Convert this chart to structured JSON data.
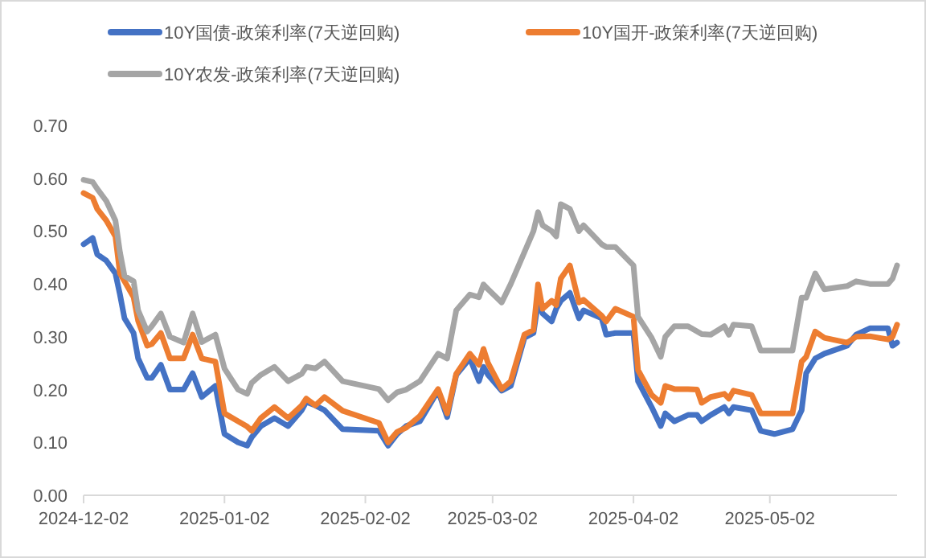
{
  "chart_data": {
    "type": "line",
    "legend": "top",
    "grid": false,
    "marker": "none",
    "line_style": "solid",
    "x": [
      "2024-12-02",
      "2024-12-04",
      "2024-12-05",
      "2024-12-07",
      "2024-12-09",
      "2024-12-10",
      "2024-12-11",
      "2024-12-13",
      "2024-12-14",
      "2024-12-16",
      "2024-12-17",
      "2024-12-19",
      "2024-12-21",
      "2024-12-24",
      "2024-12-26",
      "2024-12-28",
      "2024-12-31",
      "2025-01-02",
      "2025-01-05",
      "2025-01-07",
      "2025-01-08",
      "2025-01-10",
      "2025-01-13",
      "2025-01-16",
      "2025-01-19",
      "2025-01-20",
      "2025-01-22",
      "2025-01-24",
      "2025-01-28",
      "2025-02-05",
      "2025-02-07",
      "2025-02-09",
      "2025-02-11",
      "2025-02-14",
      "2025-02-18",
      "2025-02-20",
      "2025-02-22",
      "2025-02-25",
      "2025-02-27",
      "2025-02-28",
      "2025-03-01",
      "2025-03-04",
      "2025-03-06",
      "2025-03-09",
      "2025-03-11",
      "2025-03-12",
      "2025-03-13",
      "2025-03-15",
      "2025-03-16",
      "2025-03-17",
      "2025-03-19",
      "2025-03-21",
      "2025-03-22",
      "2025-03-26",
      "2025-03-27",
      "2025-03-29",
      "2025-04-02",
      "2025-04-03",
      "2025-04-06",
      "2025-04-08",
      "2025-04-09",
      "2025-04-11",
      "2025-04-14",
      "2025-04-16",
      "2025-04-17",
      "2025-04-19",
      "2025-04-22",
      "2025-04-23",
      "2025-04-24",
      "2025-04-28",
      "2025-04-30",
      "2025-05-03",
      "2025-05-07",
      "2025-05-09",
      "2025-05-10",
      "2025-05-12",
      "2025-05-14",
      "2025-05-19",
      "2025-05-21",
      "2025-05-24",
      "2025-05-28",
      "2025-05-29",
      "2025-05-30"
    ],
    "series": [
      {
        "name": "10Y国债-政策利率(7天逆回购)",
        "color": "#4472c4",
        "values": [
          0.475,
          0.487,
          0.456,
          0.444,
          0.42,
          0.38,
          0.335,
          0.307,
          0.259,
          0.222,
          0.222,
          0.247,
          0.2,
          0.2,
          0.231,
          0.186,
          0.207,
          0.116,
          0.1,
          0.094,
          0.11,
          0.131,
          0.146,
          0.131,
          0.161,
          0.177,
          0.17,
          0.161,
          0.125,
          0.122,
          0.094,
          0.116,
          0.131,
          0.14,
          0.198,
          0.148,
          0.228,
          0.259,
          0.216,
          0.243,
          0.228,
          0.198,
          0.207,
          0.298,
          0.307,
          0.365,
          0.344,
          0.329,
          0.353,
          0.368,
          0.383,
          0.335,
          0.35,
          0.335,
          0.304,
          0.307,
          0.307,
          0.216,
          0.167,
          0.131,
          0.155,
          0.14,
          0.152,
          0.152,
          0.14,
          0.152,
          0.167,
          0.155,
          0.167,
          0.161,
          0.122,
          0.116,
          0.125,
          0.161,
          0.231,
          0.259,
          0.268,
          0.283,
          0.304,
          0.316,
          0.316,
          0.283,
          0.289
        ]
      },
      {
        "name": "10Y国开-政策利率(7天逆回购)",
        "color": "#ed7d31",
        "values": [
          0.572,
          0.563,
          0.542,
          0.52,
          0.49,
          0.42,
          0.405,
          0.375,
          0.33,
          0.283,
          0.286,
          0.307,
          0.259,
          0.259,
          0.304,
          0.259,
          0.253,
          0.155,
          0.14,
          0.13,
          0.122,
          0.146,
          0.167,
          0.146,
          0.17,
          0.183,
          0.17,
          0.186,
          0.16,
          0.137,
          0.1,
          0.12,
          0.128,
          0.15,
          0.201,
          0.155,
          0.23,
          0.268,
          0.247,
          0.277,
          0.25,
          0.201,
          0.216,
          0.304,
          0.313,
          0.399,
          0.353,
          0.368,
          0.36,
          0.41,
          0.435,
          0.365,
          0.37,
          0.34,
          0.329,
          0.353,
          0.338,
          0.237,
          0.19,
          0.175,
          0.207,
          0.201,
          0.201,
          0.2,
          0.175,
          0.186,
          0.192,
          0.183,
          0.198,
          0.19,
          0.155,
          0.155,
          0.155,
          0.253,
          0.262,
          0.31,
          0.298,
          0.289,
          0.3,
          0.301,
          0.295,
          0.3,
          0.323
        ]
      },
      {
        "name": "10Y农发-政策利率(7天逆回购)",
        "color": "#a5a5a5",
        "values": [
          0.597,
          0.593,
          0.58,
          0.557,
          0.52,
          0.46,
          0.415,
          0.405,
          0.35,
          0.31,
          0.32,
          0.344,
          0.3,
          0.289,
          0.344,
          0.29,
          0.304,
          0.24,
          0.2,
          0.192,
          0.213,
          0.228,
          0.243,
          0.216,
          0.23,
          0.243,
          0.24,
          0.253,
          0.216,
          0.201,
          0.18,
          0.195,
          0.2,
          0.216,
          0.268,
          0.259,
          0.35,
          0.38,
          0.375,
          0.399,
          0.39,
          0.365,
          0.4,
          0.46,
          0.5,
          0.536,
          0.511,
          0.5,
          0.49,
          0.551,
          0.542,
          0.5,
          0.511,
          0.475,
          0.47,
          0.47,
          0.435,
          0.338,
          0.298,
          0.262,
          0.3,
          0.32,
          0.32,
          0.31,
          0.305,
          0.304,
          0.32,
          0.304,
          0.323,
          0.32,
          0.274,
          0.274,
          0.274,
          0.374,
          0.374,
          0.42,
          0.39,
          0.396,
          0.405,
          0.4,
          0.4,
          0.41,
          0.435
        ]
      }
    ],
    "xlim": [
      "2024-12-02",
      "2025-05-30"
    ],
    "xticks": [
      "2024-12-02",
      "2025-01-02",
      "2025-02-02",
      "2025-03-02",
      "2025-04-02",
      "2025-05-02"
    ],
    "ylim": [
      0,
      0.7
    ],
    "yticks": [
      {
        "value": 0,
        "label": "0.00"
      },
      {
        "value": 0.1,
        "label": "0.10"
      },
      {
        "value": 0.2,
        "label": "0.20"
      },
      {
        "value": 0.3,
        "label": "0.30"
      },
      {
        "value": 0.4,
        "label": "0.40"
      },
      {
        "value": 0.5,
        "label": "0.50"
      },
      {
        "value": 0.6,
        "label": "0.60"
      },
      {
        "value": 0.7,
        "label": "0.70"
      }
    ]
  }
}
